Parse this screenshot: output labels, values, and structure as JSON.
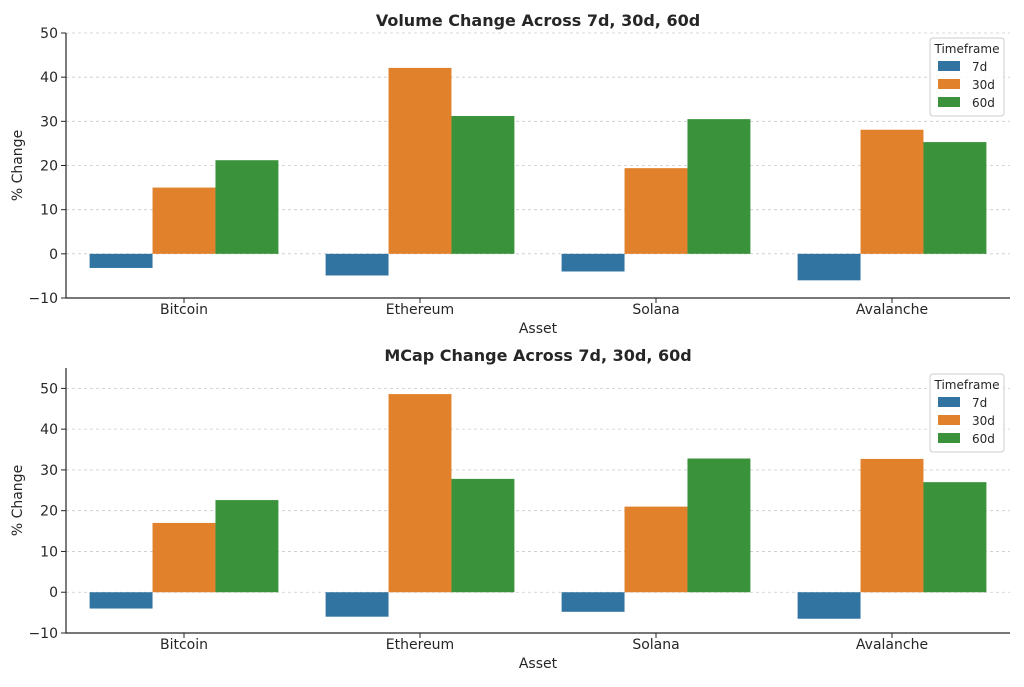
{
  "chart_data": [
    {
      "type": "bar",
      "title": "Volume Change Across 7d, 30d, 60d",
      "xlabel": "Asset",
      "ylabel": "% Change",
      "categories": [
        "Bitcoin",
        "Ethereum",
        "Solana",
        "Avalanche"
      ],
      "ylim": [
        -10,
        50
      ],
      "yticks": [
        -10,
        0,
        10,
        20,
        30,
        40,
        50
      ],
      "ytick_labels": [
        "−10",
        "0",
        "10",
        "20",
        "30",
        "40",
        "50"
      ],
      "grid": true,
      "legend_title": "Timeframe",
      "legend_position": "top-right",
      "series": [
        {
          "name": "7d",
          "color": "#3274a1",
          "values": [
            -3.2,
            -4.9,
            -4.0,
            -6.0
          ]
        },
        {
          "name": "30d",
          "color": "#e1812c",
          "values": [
            15.0,
            42.1,
            19.4,
            28.1
          ]
        },
        {
          "name": "60d",
          "color": "#3a923a",
          "values": [
            21.2,
            31.2,
            30.5,
            25.3
          ]
        }
      ]
    },
    {
      "type": "bar",
      "title": "MCap Change Across 7d, 30d, 60d",
      "xlabel": "Asset",
      "ylabel": "% Change",
      "categories": [
        "Bitcoin",
        "Ethereum",
        "Solana",
        "Avalanche"
      ],
      "ylim": [
        -10,
        55
      ],
      "yticks": [
        -10,
        0,
        10,
        20,
        30,
        40,
        50
      ],
      "ytick_labels": [
        "−10",
        "0",
        "10",
        "20",
        "30",
        "40",
        "50"
      ],
      "grid": true,
      "legend_title": "Timeframe",
      "legend_position": "top-right",
      "series": [
        {
          "name": "7d",
          "color": "#3274a1",
          "values": [
            -4.0,
            -6.0,
            -4.8,
            -6.5
          ]
        },
        {
          "name": "30d",
          "color": "#e1812c",
          "values": [
            17.0,
            48.6,
            21.0,
            32.7
          ]
        },
        {
          "name": "60d",
          "color": "#3a923a",
          "values": [
            22.6,
            27.8,
            32.8,
            27.0
          ]
        }
      ]
    }
  ]
}
